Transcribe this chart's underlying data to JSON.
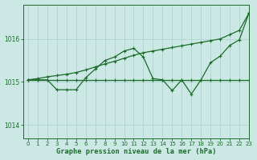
{
  "title": "Graphe pression niveau de la mer (hPa)",
  "background_color": "#cce8e4",
  "grid_color": "#aad0cc",
  "line_color": "#1a6b2a",
  "xlim": [
    -0.5,
    23
  ],
  "ylim": [
    1013.7,
    1016.8
  ],
  "yticks": [
    1014,
    1015,
    1016
  ],
  "xticks": [
    0,
    1,
    2,
    3,
    4,
    5,
    6,
    7,
    8,
    9,
    10,
    11,
    12,
    13,
    14,
    15,
    16,
    17,
    18,
    19,
    20,
    21,
    22,
    23
  ],
  "line1_x": [
    0,
    1,
    2,
    3,
    4,
    5,
    6,
    7,
    8,
    9,
    10,
    11,
    12,
    13,
    14,
    15,
    16,
    17,
    18,
    19,
    20,
    21,
    22,
    23
  ],
  "line1_y": [
    1015.05,
    1015.05,
    1015.05,
    1015.05,
    1015.05,
    1015.05,
    1015.05,
    1015.05,
    1015.05,
    1015.05,
    1015.05,
    1015.05,
    1015.05,
    1015.05,
    1015.05,
    1015.05,
    1015.05,
    1015.05,
    1015.05,
    1015.05,
    1015.05,
    1015.05,
    1015.05,
    1015.05
  ],
  "line2_x": [
    0,
    1,
    2,
    3,
    4,
    5,
    6,
    7,
    8,
    9,
    10,
    11,
    12,
    13,
    14,
    15,
    16,
    17,
    18,
    19,
    20,
    21,
    22,
    23
  ],
  "line2_y": [
    1015.05,
    1015.08,
    1015.12,
    1015.15,
    1015.18,
    1015.22,
    1015.28,
    1015.35,
    1015.42,
    1015.48,
    1015.55,
    1015.62,
    1015.68,
    1015.72,
    1015.76,
    1015.8,
    1015.84,
    1015.88,
    1015.92,
    1015.96,
    1016.0,
    1016.1,
    1016.2,
    1016.6
  ],
  "line3_x": [
    0,
    1,
    2,
    3,
    4,
    5,
    6,
    7,
    8,
    9,
    10,
    11,
    12,
    13,
    14,
    15,
    16,
    17,
    18,
    19,
    20,
    21,
    22,
    23
  ],
  "line3_y": [
    1015.05,
    1015.05,
    1015.05,
    1014.82,
    1014.82,
    1014.82,
    1015.1,
    1015.3,
    1015.5,
    1015.58,
    1015.72,
    1015.78,
    1015.58,
    1015.08,
    1015.05,
    1014.8,
    1015.05,
    1014.72,
    1015.05,
    1015.45,
    1015.6,
    1015.85,
    1015.98,
    1016.6
  ]
}
